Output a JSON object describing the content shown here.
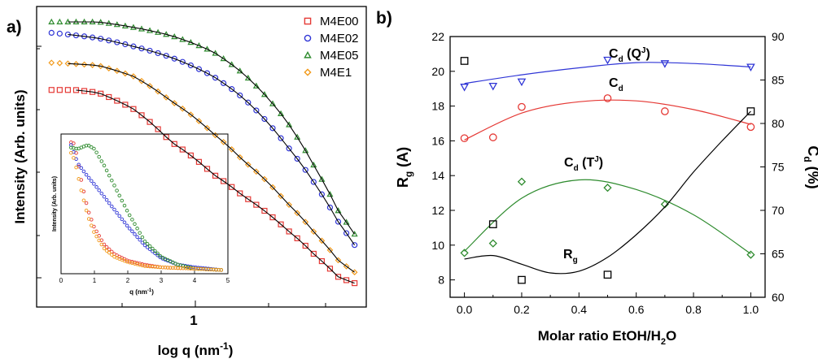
{
  "panel_a": {
    "label": "a)",
    "ylabel": "Intensity (Arb. units)",
    "xlabel": "log q (nm",
    "xlabel_sup": "-1",
    "xlabel_end": ")",
    "x_tick_label": "1",
    "legend": [
      {
        "name": "M4E00",
        "color": "#e53935",
        "marker": "square"
      },
      {
        "name": "M4E02",
        "color": "#2f35d6",
        "marker": "circle"
      },
      {
        "name": "M4E05",
        "color": "#2e8b2e",
        "marker": "triangle"
      },
      {
        "name": "M4E1",
        "color": "#f29a1a",
        "marker": "diamond"
      }
    ],
    "inset": {
      "ylabel": "Intensity (Arb. units)",
      "xlabel": "q (nm",
      "xlabel_sup": "-1",
      "xlabel_end": ")",
      "x_ticks": [
        "0",
        "1",
        "2",
        "3",
        "4",
        "5"
      ]
    }
  },
  "panel_b": {
    "label": "b)",
    "ylabel_left": "R",
    "ylabel_left_sub": "g",
    "ylabel_left_unit": " (A)",
    "ylabel_right": "C",
    "ylabel_right_sub": "d",
    "ylabel_right_unit": " (%)",
    "xlabel": "Molar ratio EtOH/H",
    "xlabel_sub": "2",
    "xlabel_end": "O",
    "x_ticks": [
      "0.0",
      "0.2",
      "0.4",
      "0.6",
      "0.8",
      "1.0"
    ],
    "y_left_ticks": [
      "8",
      "10",
      "12",
      "14",
      "16",
      "18",
      "20",
      "22"
    ],
    "y_right_ticks": [
      "60",
      "65",
      "70",
      "75",
      "80",
      "85",
      "90"
    ],
    "annotations": {
      "cdq": {
        "main": "C",
        "sub": "d",
        "rest": " (Q",
        "sup": "J",
        "end": ")"
      },
      "cd": {
        "main": "C",
        "sub": "d"
      },
      "cdt": {
        "main": "C",
        "sub": "d",
        "rest": " (T",
        "sup": "J",
        "end": ")"
      },
      "rg": {
        "main": "R",
        "sub": "g"
      }
    }
  },
  "chart_data": [
    {
      "type": "scatter",
      "panel": "a",
      "xlabel": "log q (nm-1)",
      "ylabel": "Intensity (Arb. units)",
      "xscale": "log",
      "yscale": "log",
      "x_range": [
        0.3,
        6
      ],
      "series": [
        {
          "name": "M4E00",
          "color": "#e53935",
          "marker": "square",
          "x": [
            0.32,
            0.4,
            0.5,
            0.7,
            1.0,
            1.5,
            2.0,
            3.0,
            4.0,
            5.0,
            5.8
          ],
          "y": [
            0.75,
            0.75,
            0.74,
            0.68,
            0.56,
            0.44,
            0.36,
            0.24,
            0.14,
            0.06,
            0.04
          ]
        },
        {
          "name": "M4E02",
          "color": "#2f35d6",
          "marker": "circle",
          "x": [
            0.32,
            0.5,
            0.7,
            1.0,
            1.5,
            2.0,
            3.0,
            4.0,
            5.0,
            5.8
          ],
          "y": [
            0.96,
            0.94,
            0.91,
            0.87,
            0.8,
            0.72,
            0.55,
            0.4,
            0.26,
            0.18
          ]
        },
        {
          "name": "M4E05",
          "color": "#2e8b2e",
          "marker": "triangle",
          "x": [
            0.32,
            0.5,
            0.7,
            1.0,
            1.5,
            2.0,
            3.0,
            4.0,
            5.0,
            5.8
          ],
          "y": [
            1.0,
            1.0,
            0.98,
            0.95,
            0.89,
            0.81,
            0.64,
            0.46,
            0.3,
            0.22
          ]
        },
        {
          "name": "M4E1",
          "color": "#f29a1a",
          "marker": "diamond",
          "x": [
            0.32,
            0.5,
            0.7,
            1.0,
            1.5,
            2.0,
            3.0,
            4.0,
            5.0,
            5.8
          ],
          "y": [
            0.85,
            0.84,
            0.8,
            0.71,
            0.59,
            0.49,
            0.34,
            0.22,
            0.12,
            0.08
          ]
        }
      ]
    },
    {
      "type": "scatter",
      "panel": "a-inset",
      "xlabel": "q (nm-1)",
      "ylabel": "Intensity (Arb. units)",
      "xlim": [
        0,
        5
      ],
      "series": [
        {
          "name": "M4E00",
          "color": "#e53935",
          "x": [
            0.3,
            0.4,
            0.6,
            0.8,
            1.0,
            1.3,
            1.6,
            2.0,
            2.5,
            3.0,
            4.0,
            4.8
          ],
          "y": [
            0.98,
            0.97,
            0.7,
            0.47,
            0.33,
            0.2,
            0.13,
            0.08,
            0.05,
            0.03,
            0.02,
            0.01
          ]
        },
        {
          "name": "M4E02",
          "color": "#2f35d6",
          "x": [
            0.3,
            0.5,
            0.8,
            1.0,
            1.5,
            2.0,
            2.5,
            3.0,
            3.5,
            4.0,
            4.8
          ],
          "y": [
            0.96,
            0.82,
            0.72,
            0.66,
            0.5,
            0.34,
            0.2,
            0.1,
            0.05,
            0.03,
            0.01
          ]
        },
        {
          "name": "M4E05",
          "color": "#2e8b2e",
          "x": [
            0.3,
            0.5,
            0.8,
            1.0,
            1.3,
            1.6,
            2.0,
            2.5,
            3.0,
            3.5,
            4.0,
            4.8
          ],
          "y": [
            0.94,
            0.93,
            0.96,
            0.93,
            0.8,
            0.65,
            0.45,
            0.23,
            0.11,
            0.05,
            0.02,
            0.01
          ]
        },
        {
          "name": "M4E1",
          "color": "#f29a1a",
          "x": [
            0.3,
            0.4,
            0.6,
            0.8,
            1.0,
            1.3,
            1.6,
            2.0,
            2.5,
            3.0,
            4.0,
            4.8
          ],
          "y": [
            0.9,
            0.85,
            0.62,
            0.42,
            0.29,
            0.17,
            0.11,
            0.07,
            0.04,
            0.03,
            0.02,
            0.01
          ]
        }
      ]
    },
    {
      "type": "scatter",
      "panel": "b",
      "xlabel": "Molar ratio EtOH/H2O",
      "ylabel_left": "Rg (A)",
      "ylabel_right": "Cd (%)",
      "xlim": [
        -0.05,
        1.05
      ],
      "ylim_left": [
        7,
        22
      ],
      "ylim_right": [
        60,
        90
      ],
      "series": [
        {
          "name": "Cd (QJ)",
          "axis": "right",
          "color": "#2f35d6",
          "marker": "triangle-down",
          "x": [
            0.0,
            0.1,
            0.2,
            0.5,
            0.7,
            1.0
          ],
          "y": [
            84.2,
            84.3,
            84.8,
            87.3,
            86.9,
            86.5
          ],
          "fit_x": [
            0.0,
            0.2,
            0.4,
            0.6,
            0.8,
            1.0
          ],
          "fit_y": [
            84.6,
            85.6,
            86.4,
            87.0,
            86.9,
            86.5
          ]
        },
        {
          "name": "Cd",
          "axis": "right",
          "color": "#e53935",
          "marker": "circle",
          "x": [
            0.0,
            0.1,
            0.2,
            0.5,
            0.7,
            1.0
          ],
          "y": [
            78.3,
            78.4,
            81.9,
            82.9,
            81.4,
            79.6
          ],
          "fit_x": [
            0.0,
            0.2,
            0.4,
            0.6,
            0.8,
            1.0
          ],
          "fit_y": [
            78.1,
            81.2,
            82.5,
            82.6,
            81.6,
            79.9
          ]
        },
        {
          "name": "Cd (TJ)",
          "axis": "right",
          "color": "#2e8b2e",
          "marker": "diamond",
          "x": [
            0.0,
            0.1,
            0.2,
            0.5,
            0.7,
            1.0
          ],
          "y": [
            65.1,
            66.2,
            73.3,
            72.6,
            70.7,
            64.9
          ],
          "fit_x": [
            0.0,
            0.2,
            0.4,
            0.6,
            0.8,
            1.0
          ],
          "fit_y": [
            65.3,
            71.4,
            73.5,
            72.4,
            69.5,
            65.0
          ]
        },
        {
          "name": "Rg",
          "axis": "left",
          "color": "#000000",
          "marker": "square",
          "x": [
            0.0,
            0.1,
            0.2,
            0.5,
            1.0
          ],
          "y": [
            20.6,
            11.2,
            8.0,
            8.3,
            17.7
          ],
          "fit_x": [
            0.0,
            0.1,
            0.2,
            0.3,
            0.4,
            0.5,
            0.6,
            0.7,
            0.8,
            0.9,
            1.0
          ],
          "fit_y": [
            9.2,
            9.4,
            8.9,
            8.4,
            8.5,
            9.3,
            10.6,
            12.2,
            14.2,
            16.0,
            17.7
          ]
        }
      ]
    }
  ]
}
